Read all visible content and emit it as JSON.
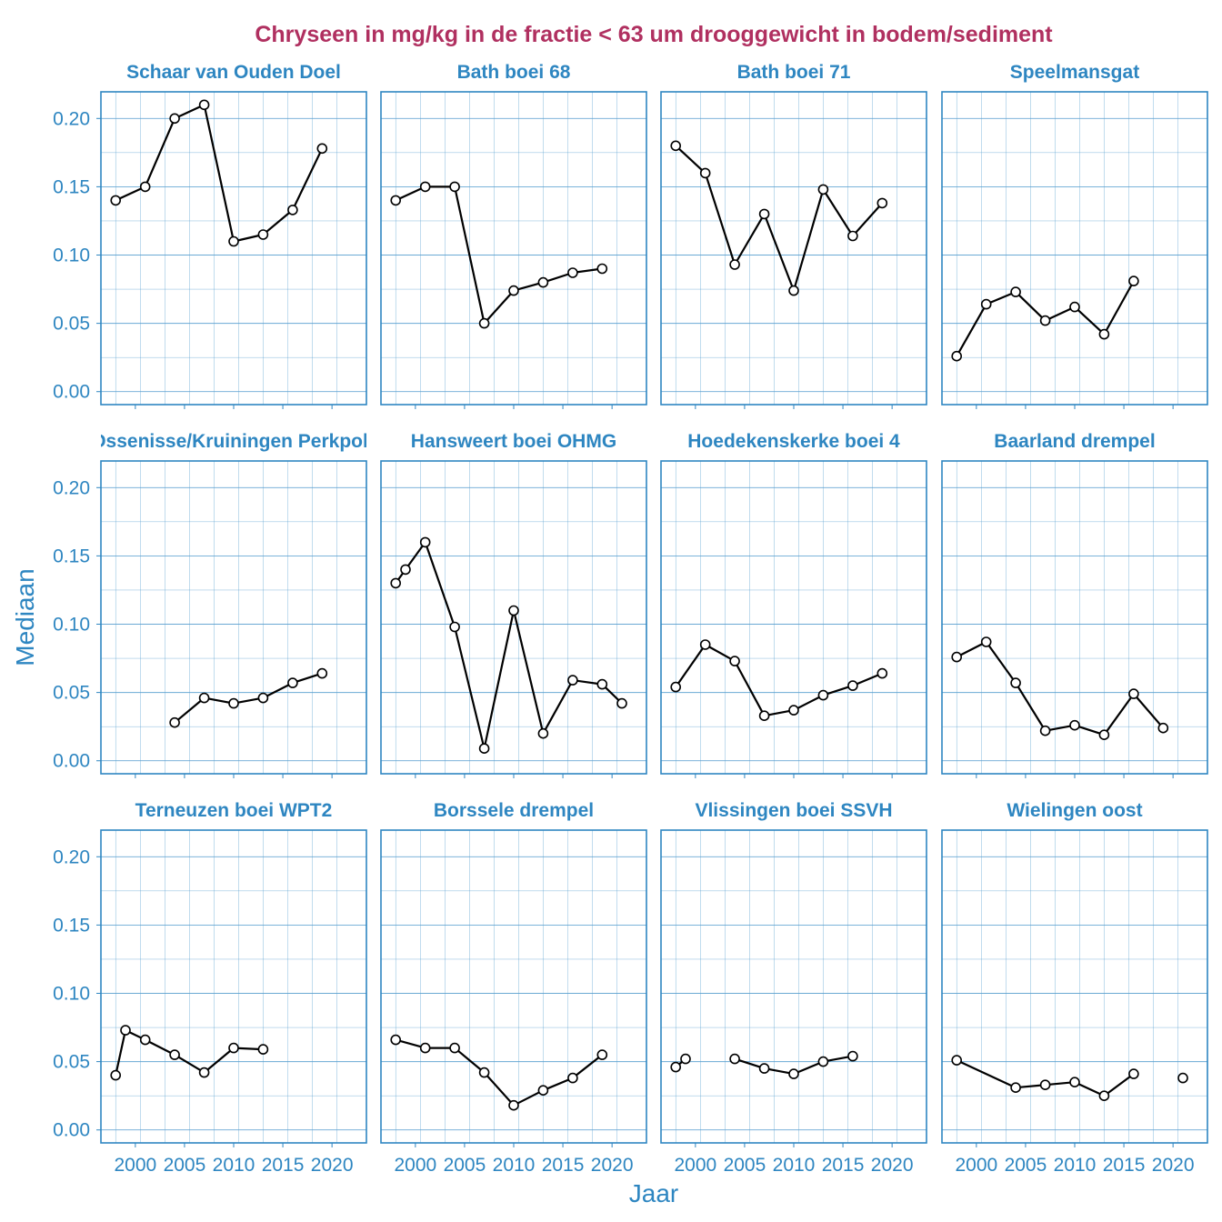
{
  "chart_data": {
    "type": "line",
    "title": "Chryseen in mg/kg in de fractie < 63 um drooggewicht in bodem/sediment",
    "xlabel": "Jaar",
    "ylabel": "Mediaan",
    "xlim": [
      1996.5,
      2023.5
    ],
    "ylim": [
      -0.0095,
      0.2195
    ],
    "x_ticks": [
      2000,
      2005,
      2010,
      2015,
      2020
    ],
    "y_ticks": [
      0.0,
      0.05,
      0.1,
      0.15,
      0.2
    ],
    "x_tick_labels": [
      "2000",
      "2005",
      "2010",
      "2015",
      "2020"
    ],
    "y_tick_labels": [
      "0.00",
      "0.05",
      "0.10",
      "0.15",
      "0.20"
    ],
    "colors": {
      "title": "#b03060",
      "strip": "#2e86c1",
      "axis": "#2e86c1",
      "grid": "#5aa0d0",
      "line": "#000000",
      "point_fill": "#ffffff"
    },
    "panels": [
      {
        "name": "Schaar van Ouden Doel",
        "segments": [
          [
            [
              1998,
              0.14
            ],
            [
              2001,
              0.15
            ],
            [
              2004,
              0.2
            ],
            [
              2007,
              0.21
            ],
            [
              2010,
              0.11
            ],
            [
              2013,
              0.115
            ],
            [
              2016,
              0.133
            ],
            [
              2019,
              0.178
            ]
          ]
        ]
      },
      {
        "name": "Bath boei 68",
        "segments": [
          [
            [
              1998,
              0.14
            ],
            [
              2001,
              0.15
            ],
            [
              2004,
              0.15
            ],
            [
              2007,
              0.05
            ],
            [
              2010,
              0.074
            ],
            [
              2013,
              0.08
            ],
            [
              2016,
              0.087
            ],
            [
              2019,
              0.09
            ]
          ]
        ]
      },
      {
        "name": "Bath boei 71",
        "segments": [
          [
            [
              1998,
              0.18
            ],
            [
              2001,
              0.16
            ],
            [
              2004,
              0.093
            ],
            [
              2007,
              0.13
            ],
            [
              2010,
              0.074
            ],
            [
              2013,
              0.148
            ],
            [
              2016,
              0.114
            ],
            [
              2019,
              0.138
            ]
          ]
        ]
      },
      {
        "name": "Speelmansgat",
        "segments": [
          [
            [
              1998,
              0.026
            ],
            [
              2001,
              0.064
            ],
            [
              2004,
              0.073
            ],
            [
              2007,
              0.052
            ],
            [
              2010,
              0.062
            ],
            [
              2013,
              0.042
            ],
            [
              2016,
              0.081
            ]
          ]
        ]
      },
      {
        "name": "Walsoorden/Ossenisse/Kruiningen Perkpolder (drempel)",
        "segments": [
          [
            [
              2004,
              0.028
            ],
            [
              2007,
              0.046
            ],
            [
              2010,
              0.042
            ],
            [
              2013,
              0.046
            ],
            [
              2016,
              0.057
            ],
            [
              2019,
              0.064
            ]
          ]
        ]
      },
      {
        "name": "Hansweert boei OHMG",
        "segments": [
          [
            [
              1998,
              0.13
            ],
            [
              1999,
              0.14
            ],
            [
              2001,
              0.16
            ],
            [
              2004,
              0.098
            ],
            [
              2007,
              0.009
            ],
            [
              2010,
              0.11
            ],
            [
              2013,
              0.02
            ],
            [
              2016,
              0.059
            ],
            [
              2019,
              0.056
            ],
            [
              2021,
              0.042
            ]
          ]
        ]
      },
      {
        "name": "Hoedekenskerke boei 4",
        "segments": [
          [
            [
              1998,
              0.054
            ],
            [
              2001,
              0.085
            ],
            [
              2004,
              0.073
            ],
            [
              2007,
              0.033
            ],
            [
              2010,
              0.037
            ],
            [
              2013,
              0.048
            ],
            [
              2016,
              0.055
            ],
            [
              2019,
              0.064
            ]
          ]
        ]
      },
      {
        "name": "Baarland drempel",
        "segments": [
          [
            [
              1998,
              0.076
            ],
            [
              2001,
              0.087
            ],
            [
              2004,
              0.057
            ],
            [
              2007,
              0.022
            ],
            [
              2010,
              0.026
            ],
            [
              2013,
              0.019
            ],
            [
              2016,
              0.049
            ],
            [
              2019,
              0.024
            ]
          ]
        ]
      },
      {
        "name": "Terneuzen boei WPT2",
        "segments": [
          [
            [
              1998,
              0.04
            ],
            [
              1999,
              0.073
            ],
            [
              2001,
              0.066
            ],
            [
              2004,
              0.055
            ],
            [
              2007,
              0.042
            ],
            [
              2010,
              0.06
            ],
            [
              2013,
              0.059
            ]
          ]
        ]
      },
      {
        "name": "Borssele drempel",
        "segments": [
          [
            [
              1998,
              0.066
            ],
            [
              2001,
              0.06
            ],
            [
              2004,
              0.06
            ],
            [
              2007,
              0.042
            ],
            [
              2010,
              0.018
            ],
            [
              2013,
              0.029
            ],
            [
              2016,
              0.038
            ],
            [
              2019,
              0.055
            ]
          ]
        ]
      },
      {
        "name": "Vlissingen boei SSVH",
        "segments": [
          [
            [
              1998,
              0.046
            ],
            [
              1999,
              0.052
            ]
          ],
          [
            [
              2004,
              0.052
            ],
            [
              2007,
              0.045
            ],
            [
              2010,
              0.041
            ],
            [
              2013,
              0.05
            ],
            [
              2016,
              0.054
            ]
          ]
        ]
      },
      {
        "name": "Wielingen oost",
        "segments": [
          [
            [
              1998,
              0.051
            ],
            [
              2004,
              0.031
            ],
            [
              2007,
              0.033
            ],
            [
              2010,
              0.035
            ],
            [
              2013,
              0.025
            ],
            [
              2016,
              0.041
            ]
          ],
          [
            [
              2021,
              0.038
            ]
          ]
        ]
      }
    ]
  }
}
